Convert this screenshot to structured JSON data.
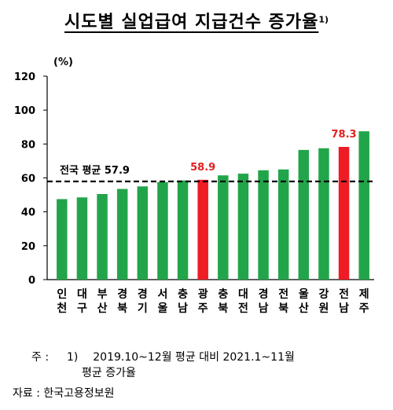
{
  "title": "시도별 실업급여 지급건수 증가율",
  "title_sup": "1)",
  "footnote": {
    "marker": "주 :",
    "number": "1)",
    "text": "2019.10~12월 평균 대비 2021.1~11월",
    "text_cont": "평균 증가율"
  },
  "source": "자료 : 한국고용정보원",
  "colors": {
    "green": "#22a54a",
    "red": "#ee1c24",
    "red_label": "#e02020"
  },
  "chart_data": {
    "type": "bar",
    "ylabel": "(%)",
    "ylim": [
      0,
      120
    ],
    "yticks": [
      "0",
      "20",
      "40",
      "60",
      "80",
      "100",
      "120"
    ],
    "grid": false,
    "categories": [
      [
        "인",
        "천"
      ],
      [
        "대",
        "구"
      ],
      [
        "부",
        "산"
      ],
      [
        "경",
        "북"
      ],
      [
        "경",
        "기"
      ],
      [
        "서",
        "울"
      ],
      [
        "충",
        "남"
      ],
      [
        "광",
        "주"
      ],
      [
        "충",
        "북"
      ],
      [
        "대",
        "전"
      ],
      [
        "경",
        "남"
      ],
      [
        "전",
        "북"
      ],
      [
        "울",
        "산"
      ],
      [
        "강",
        "원"
      ],
      [
        "전",
        "남"
      ],
      [
        "제",
        "주"
      ]
    ],
    "values": [
      47.5,
      48.5,
      50.5,
      53.5,
      55,
      57.5,
      58.5,
      58.9,
      61.5,
      62.5,
      64.5,
      65,
      76.5,
      77.5,
      78.3,
      87.5
    ],
    "highlight": [
      7,
      14
    ],
    "data_labels": [
      {
        "index": 7,
        "text": "58.9"
      },
      {
        "index": 14,
        "text": "78.3"
      }
    ],
    "reference_line": {
      "label": "전국 평균 57.9",
      "value": 57.9,
      "style": "dashed"
    }
  }
}
